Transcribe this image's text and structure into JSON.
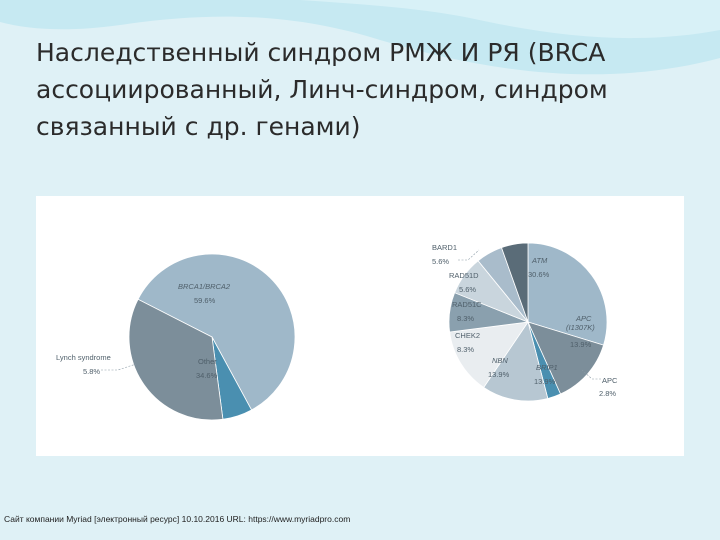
{
  "title": {
    "line1": "Наследственный синдром РМЖ И РЯ (BRCA",
    "line2": "ассоциированный, Линч-синдром, синдром",
    "line3": "связанный с др. генами)"
  },
  "colors": {
    "background": "#dff1f6",
    "wave": "#bfe6f0",
    "panel": "#ffffff",
    "brca": "#9fb8c9",
    "lynch": "#4a8fb0",
    "other": "#7c8e9a",
    "label": "#4f5f6a"
  },
  "chart_data": [
    {
      "type": "pie",
      "title": "",
      "slices": [
        {
          "key": "brca",
          "name": "BRCA1/BRCA2",
          "value": 59.6,
          "label": "59.6%",
          "color": "#9fb8c9"
        },
        {
          "key": "lynch",
          "name": "Lynch syndrome",
          "value": 5.8,
          "label": "5.8%",
          "color": "#4a8fb0"
        },
        {
          "key": "other",
          "name": "Other",
          "value": 34.6,
          "label": "34.6%",
          "color": "#7c8e9a"
        }
      ]
    },
    {
      "type": "pie",
      "title": "",
      "slices": [
        {
          "key": "atm",
          "name": "ATM",
          "value": 30.6,
          "label": "30.6%",
          "color": "#9fb8c9"
        },
        {
          "key": "apc_i1307k",
          "name": "APC (I1307K)",
          "value": 13.9,
          "label": "13.9%",
          "color": "#7c8e9a"
        },
        {
          "key": "apc",
          "name": "APC",
          "value": 2.8,
          "label": "2.8%",
          "color": "#4a8fb0"
        },
        {
          "key": "brip1",
          "name": "BRIP1",
          "value": 13.9,
          "label": "13.9%",
          "color": "#b7c7d2"
        },
        {
          "key": "nbn",
          "name": "NBN",
          "value": 13.9,
          "label": "13.9%",
          "color": "#e9edf0"
        },
        {
          "key": "chek2",
          "name": "CHEK2",
          "value": 8.3,
          "label": "8.3%",
          "color": "#8aa0ae"
        },
        {
          "key": "rad51c",
          "name": "RAD51C",
          "value": 8.3,
          "label": "8.3%",
          "color": "#c9d5dd"
        },
        {
          "key": "rad51d",
          "name": "RAD51D",
          "value": 5.6,
          "label": "5.6%",
          "color": "#a9bccb"
        },
        {
          "key": "bard1",
          "name": "BARD1",
          "value": 5.6,
          "label": "5.6%",
          "color": "#5a6c78"
        }
      ]
    }
  ],
  "source": "Сайт компании Myriad [электронный ресурс] 10.10.2016 URL: https://www.myriadpro.com"
}
